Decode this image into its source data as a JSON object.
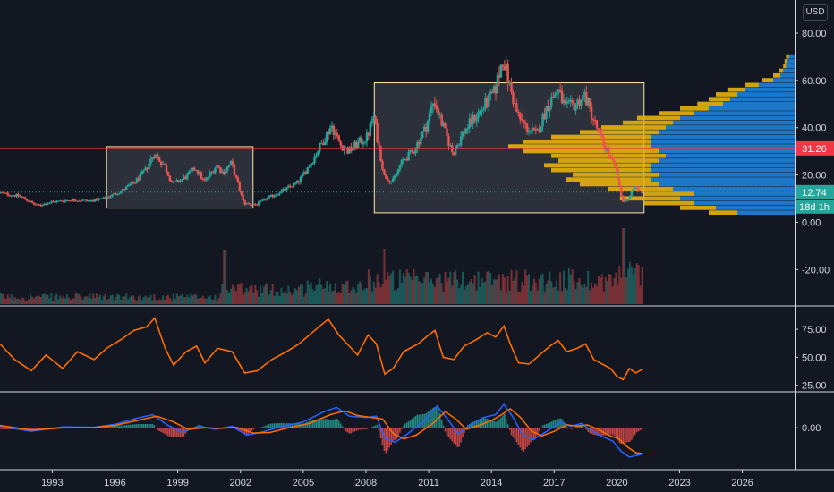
{
  "currency_button": "USD",
  "colors": {
    "background": "#131722",
    "up": "#26a69a",
    "down": "#ef5350",
    "orange": "#ff6d00",
    "blue": "#2962ff",
    "gold": "#e8b30d",
    "profile_blue": "#1e88e5",
    "hline": "#f23645",
    "box": "#ffe7a6"
  },
  "chart_data": [
    {
      "type": "candlestick",
      "panel": "price",
      "x_axis_labels": [
        "1993",
        "1996",
        "1999",
        "2002",
        "2005",
        "2008",
        "2011",
        "2014",
        "2017",
        "2020",
        "2023",
        "2026"
      ],
      "xlim": [
        1990.5,
        2028.5
      ],
      "ylim": [
        -35,
        94
      ],
      "y_tick_labels": [
        "80.00",
        "60.00",
        "40.00",
        "20.00",
        "0.00",
        "-20.00"
      ],
      "y_ticks": [
        80,
        60,
        40,
        20,
        0,
        -20
      ],
      "horizontal_line": {
        "value": 31.26,
        "label": "31.26"
      },
      "last_price": {
        "value": 12.74,
        "label": "12.74"
      },
      "countdown_label": "18d 1h",
      "rectangles": [
        {
          "x": [
            1995.6,
            2002.6
          ],
          "y": [
            6,
            32
          ]
        },
        {
          "x": [
            2008.4,
            2021.3
          ],
          "y": [
            4,
            59
          ]
        }
      ],
      "anchors": [
        [
          1990.5,
          12.5
        ],
        [
          1991.5,
          11
        ],
        [
          1992.3,
          7
        ],
        [
          1993.0,
          8.5
        ],
        [
          1994.0,
          9.5
        ],
        [
          1994.8,
          9
        ],
        [
          1995.5,
          10
        ],
        [
          1996.3,
          13
        ],
        [
          1997.0,
          17
        ],
        [
          1997.5,
          22
        ],
        [
          1997.9,
          29
        ],
        [
          1998.4,
          24
        ],
        [
          1998.8,
          16
        ],
        [
          1999.4,
          19
        ],
        [
          1999.9,
          23
        ],
        [
          2000.3,
          17
        ],
        [
          2000.9,
          24
        ],
        [
          2001.2,
          21
        ],
        [
          2001.6,
          25
        ],
        [
          2002.2,
          8
        ],
        [
          2002.8,
          7.5
        ],
        [
          2003.3,
          10
        ],
        [
          2004.2,
          14
        ],
        [
          2004.8,
          17
        ],
        [
          2005.4,
          25
        ],
        [
          2005.9,
          33
        ],
        [
          2006.4,
          41
        ],
        [
          2006.8,
          33
        ],
        [
          2007.2,
          30
        ],
        [
          2007.6,
          33
        ],
        [
          2008.1,
          36
        ],
        [
          2008.4,
          45
        ],
        [
          2008.9,
          20
        ],
        [
          2009.3,
          17
        ],
        [
          2009.8,
          26
        ],
        [
          2010.3,
          30
        ],
        [
          2010.9,
          40
        ],
        [
          2011.3,
          52
        ],
        [
          2011.7,
          41
        ],
        [
          2012.2,
          29
        ],
        [
          2012.7,
          38
        ],
        [
          2013.2,
          44
        ],
        [
          2013.7,
          49
        ],
        [
          2014.2,
          55
        ],
        [
          2014.6,
          70
        ],
        [
          2014.9,
          58
        ],
        [
          2015.3,
          45
        ],
        [
          2015.7,
          40
        ],
        [
          2016.2,
          37
        ],
        [
          2016.7,
          49
        ],
        [
          2017.2,
          56
        ],
        [
          2017.6,
          48
        ],
        [
          2018.1,
          50
        ],
        [
          2018.5,
          54
        ],
        [
          2018.9,
          44
        ],
        [
          2019.3,
          35
        ],
        [
          2019.7,
          28
        ],
        [
          2020.0,
          22
        ],
        [
          2020.3,
          9
        ],
        [
          2020.6,
          10
        ],
        [
          2020.9,
          15
        ],
        [
          2021.2,
          12.7
        ]
      ],
      "volume_profile": {
        "bins": [
          {
            "price": 4,
            "up": 0.4,
            "down": 0.2
          },
          {
            "price": 6,
            "up": 0.55,
            "down": 0.25
          },
          {
            "price": 8,
            "up": 0.7,
            "down": 0.35
          },
          {
            "price": 10,
            "up": 0.8,
            "down": 0.42
          },
          {
            "price": 12,
            "up": 0.7,
            "down": 0.35
          },
          {
            "price": 14,
            "up": 0.85,
            "down": 0.45
          },
          {
            "price": 16,
            "up": 0.95,
            "down": 0.55
          },
          {
            "price": 18,
            "up": 1.0,
            "down": 0.6
          },
          {
            "price": 20,
            "up": 0.95,
            "down": 0.6
          },
          {
            "price": 22,
            "up": 1.0,
            "down": 0.7
          },
          {
            "price": 24,
            "up": 1.0,
            "down": 0.75
          },
          {
            "price": 26,
            "up": 0.95,
            "down": 0.7
          },
          {
            "price": 28,
            "up": 0.9,
            "down": 0.8
          },
          {
            "price": 30,
            "up": 0.95,
            "down": 0.95
          },
          {
            "price": 32,
            "up": 1.0,
            "down": 1.0
          },
          {
            "price": 34,
            "up": 1.0,
            "down": 0.9
          },
          {
            "price": 36,
            "up": 1.0,
            "down": 0.7
          },
          {
            "price": 38,
            "up": 0.95,
            "down": 0.55
          },
          {
            "price": 40,
            "up": 0.9,
            "down": 0.45
          },
          {
            "price": 42,
            "up": 0.85,
            "down": 0.35
          },
          {
            "price": 44,
            "up": 0.8,
            "down": 0.3
          },
          {
            "price": 46,
            "up": 0.7,
            "down": 0.25
          },
          {
            "price": 48,
            "up": 0.6,
            "down": 0.2
          },
          {
            "price": 50,
            "up": 0.5,
            "down": 0.18
          },
          {
            "price": 52,
            "up": 0.45,
            "down": 0.15
          },
          {
            "price": 54,
            "up": 0.4,
            "down": 0.15
          },
          {
            "price": 56,
            "up": 0.35,
            "down": 0.12
          },
          {
            "price": 58,
            "up": 0.25,
            "down": 0.1
          },
          {
            "price": 60,
            "up": 0.15,
            "down": 0.08
          },
          {
            "price": 62,
            "up": 0.1,
            "down": 0.05
          },
          {
            "price": 64,
            "up": 0.08,
            "down": 0.03
          },
          {
            "price": 66,
            "up": 0.06,
            "down": 0.02
          },
          {
            "price": 68,
            "up": 0.05,
            "down": 0.02
          },
          {
            "price": 70,
            "up": 0.04,
            "down": 0.02
          }
        ]
      }
    },
    {
      "type": "line",
      "panel": "rsi",
      "ylim": [
        20,
        95
      ],
      "y_tick_labels": [
        "75.00",
        "50.00",
        "25.00"
      ],
      "y_ticks": [
        75,
        50,
        25
      ],
      "series": [
        {
          "color": "#ff6d00",
          "points": [
            [
              1990.5,
              62
            ],
            [
              1991.2,
              48
            ],
            [
              1992.0,
              38
            ],
            [
              1992.7,
              52
            ],
            [
              1993.5,
              40
            ],
            [
              1994.2,
              55
            ],
            [
              1995.0,
              48
            ],
            [
              1995.6,
              58
            ],
            [
              1996.3,
              66
            ],
            [
              1996.9,
              74
            ],
            [
              1997.5,
              77
            ],
            [
              1997.9,
              85
            ],
            [
              1998.4,
              58
            ],
            [
              1998.8,
              43
            ],
            [
              1999.4,
              55
            ],
            [
              1999.9,
              60
            ],
            [
              2000.3,
              45
            ],
            [
              2000.9,
              58
            ],
            [
              2001.6,
              55
            ],
            [
              2002.2,
              36
            ],
            [
              2002.8,
              38
            ],
            [
              2003.5,
              48
            ],
            [
              2004.2,
              55
            ],
            [
              2004.8,
              62
            ],
            [
              2005.3,
              70
            ],
            [
              2005.8,
              78
            ],
            [
              2006.2,
              84
            ],
            [
              2006.7,
              70
            ],
            [
              2007.2,
              60
            ],
            [
              2007.6,
              52
            ],
            [
              2008.1,
              70
            ],
            [
              2008.5,
              62
            ],
            [
              2008.9,
              35
            ],
            [
              2009.3,
              40
            ],
            [
              2009.8,
              55
            ],
            [
              2010.5,
              62
            ],
            [
              2011.0,
              70
            ],
            [
              2011.3,
              74
            ],
            [
              2011.7,
              50
            ],
            [
              2012.2,
              48
            ],
            [
              2012.7,
              60
            ],
            [
              2013.3,
              66
            ],
            [
              2013.8,
              72
            ],
            [
              2014.2,
              68
            ],
            [
              2014.6,
              78
            ],
            [
              2014.9,
              62
            ],
            [
              2015.3,
              45
            ],
            [
              2015.8,
              44
            ],
            [
              2016.3,
              52
            ],
            [
              2016.8,
              60
            ],
            [
              2017.2,
              65
            ],
            [
              2017.6,
              55
            ],
            [
              2018.1,
              58
            ],
            [
              2018.5,
              62
            ],
            [
              2018.9,
              48
            ],
            [
              2019.3,
              44
            ],
            [
              2019.7,
              40
            ],
            [
              2020.0,
              33
            ],
            [
              2020.3,
              30
            ],
            [
              2020.6,
              40
            ],
            [
              2020.9,
              36
            ],
            [
              2021.2,
              39
            ]
          ]
        }
      ]
    },
    {
      "type": "line",
      "panel": "macd",
      "ylim": [
        -14,
        12
      ],
      "y_tick_labels": [
        "0.00"
      ],
      "y_ticks": [
        0
      ],
      "series": [
        {
          "color": "#2962ff",
          "points": [
            [
              1990.5,
              0.5
            ],
            [
              1992.0,
              -1.2
            ],
            [
              1993.5,
              0.3
            ],
            [
              1995.0,
              0.2
            ],
            [
              1996.0,
              1.2
            ],
            [
              1997.0,
              3.2
            ],
            [
              1997.8,
              4.5
            ],
            [
              1998.5,
              1.0
            ],
            [
              1999.2,
              -1.5
            ],
            [
              2000.0,
              0.5
            ],
            [
              2000.8,
              -0.5
            ],
            [
              2001.6,
              0.5
            ],
            [
              2002.3,
              -2.5
            ],
            [
              2003.0,
              -1.5
            ],
            [
              2004.0,
              0.5
            ],
            [
              2005.0,
              2.0
            ],
            [
              2006.0,
              5.5
            ],
            [
              2006.6,
              7.0
            ],
            [
              2007.2,
              4.0
            ],
            [
              2008.0,
              3.5
            ],
            [
              2008.5,
              4.0
            ],
            [
              2008.9,
              -3.5
            ],
            [
              2009.4,
              -5.0
            ],
            [
              2010.0,
              -2.0
            ],
            [
              2010.8,
              2.5
            ],
            [
              2011.4,
              7.5
            ],
            [
              2011.9,
              3.0
            ],
            [
              2012.4,
              -2.0
            ],
            [
              2013.0,
              1.0
            ],
            [
              2013.6,
              3.5
            ],
            [
              2014.2,
              4.5
            ],
            [
              2014.6,
              8.0
            ],
            [
              2015.0,
              4.0
            ],
            [
              2015.5,
              -2.5
            ],
            [
              2016.0,
              -4.0
            ],
            [
              2016.7,
              -1.0
            ],
            [
              2017.3,
              2.0
            ],
            [
              2017.8,
              0.5
            ],
            [
              2018.3,
              1.5
            ],
            [
              2018.8,
              -1.0
            ],
            [
              2019.3,
              -3.0
            ],
            [
              2019.8,
              -4.5
            ],
            [
              2020.2,
              -8.0
            ],
            [
              2020.6,
              -10.0
            ],
            [
              2021.2,
              -9.0
            ]
          ]
        },
        {
          "color": "#ff6d00",
          "points": [
            [
              1990.5,
              0.8
            ],
            [
              1992.0,
              -0.8
            ],
            [
              1993.5,
              0.0
            ],
            [
              1995.0,
              0.1
            ],
            [
              1996.0,
              0.8
            ],
            [
              1997.0,
              2.4
            ],
            [
              1998.0,
              4.0
            ],
            [
              1998.8,
              2.0
            ],
            [
              1999.5,
              -0.5
            ],
            [
              2000.3,
              0.0
            ],
            [
              2001.0,
              -0.2
            ],
            [
              2001.8,
              0.2
            ],
            [
              2002.6,
              -1.8
            ],
            [
              2003.4,
              -1.6
            ],
            [
              2004.3,
              0.0
            ],
            [
              2005.3,
              1.5
            ],
            [
              2006.3,
              4.5
            ],
            [
              2007.0,
              5.8
            ],
            [
              2007.6,
              4.2
            ],
            [
              2008.3,
              3.5
            ],
            [
              2008.8,
              3.0
            ],
            [
              2009.3,
              -2.0
            ],
            [
              2009.8,
              -3.8
            ],
            [
              2010.4,
              -2.5
            ],
            [
              2011.2,
              1.5
            ],
            [
              2011.8,
              5.5
            ],
            [
              2012.3,
              3.0
            ],
            [
              2012.8,
              -0.5
            ],
            [
              2013.4,
              0.8
            ],
            [
              2014.0,
              2.5
            ],
            [
              2014.5,
              4.5
            ],
            [
              2014.9,
              6.5
            ],
            [
              2015.4,
              3.5
            ],
            [
              2015.9,
              -1.0
            ],
            [
              2016.4,
              -2.8
            ],
            [
              2017.0,
              -1.2
            ],
            [
              2017.6,
              1.0
            ],
            [
              2018.1,
              0.6
            ],
            [
              2018.6,
              1.0
            ],
            [
              2019.1,
              -0.5
            ],
            [
              2019.6,
              -2.5
            ],
            [
              2020.1,
              -3.8
            ],
            [
              2020.5,
              -6.5
            ],
            [
              2020.9,
              -8.5
            ],
            [
              2021.2,
              -8.8
            ]
          ]
        }
      ]
    }
  ]
}
